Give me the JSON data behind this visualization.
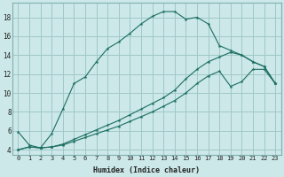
{
  "xlabel": "Humidex (Indice chaleur)",
  "bg_color": "#cce8e8",
  "grid_color": "#a0c8c8",
  "line_color": "#1a6e60",
  "xlim": [
    -0.5,
    23.5
  ],
  "ylim": [
    3.5,
    19.5
  ],
  "xticks": [
    0,
    1,
    2,
    3,
    4,
    5,
    6,
    7,
    8,
    9,
    10,
    11,
    12,
    13,
    14,
    15,
    16,
    17,
    18,
    19,
    20,
    21,
    22,
    23
  ],
  "yticks": [
    4,
    6,
    8,
    10,
    12,
    14,
    16,
    18
  ],
  "line1_x": [
    0,
    1,
    2,
    3,
    4,
    5,
    6,
    7,
    8,
    9,
    10,
    11,
    12,
    13,
    14,
    15,
    16,
    17,
    18,
    19,
    20,
    21,
    22,
    23
  ],
  "line1_y": [
    5.9,
    4.5,
    4.2,
    5.7,
    8.3,
    11.0,
    11.7,
    13.3,
    14.7,
    15.4,
    16.3,
    17.3,
    18.1,
    18.6,
    18.6,
    17.8,
    18.0,
    17.3,
    15.0,
    14.5,
    14.0,
    13.3,
    12.8,
    11.0
  ],
  "line2_x": [
    0,
    1,
    2,
    3,
    4,
    5,
    6,
    7,
    8,
    9,
    10,
    11,
    12,
    13,
    14,
    15,
    16,
    17,
    18,
    19,
    20,
    21,
    22,
    23
  ],
  "line2_y": [
    4.0,
    4.3,
    4.2,
    4.3,
    4.6,
    5.1,
    5.6,
    6.1,
    6.6,
    7.1,
    7.7,
    8.3,
    8.9,
    9.5,
    10.3,
    11.5,
    12.5,
    13.3,
    13.8,
    14.3,
    14.0,
    13.3,
    12.8,
    11.0
  ],
  "line3_x": [
    0,
    1,
    2,
    3,
    4,
    5,
    6,
    7,
    8,
    9,
    10,
    11,
    12,
    13,
    14,
    15,
    16,
    17,
    18,
    19,
    20,
    21,
    22,
    23
  ],
  "line3_y": [
    4.0,
    4.3,
    4.2,
    4.3,
    4.5,
    4.9,
    5.3,
    5.7,
    6.1,
    6.5,
    7.0,
    7.5,
    8.0,
    8.6,
    9.2,
    10.0,
    11.0,
    11.8,
    12.3,
    10.7,
    11.2,
    12.5,
    12.5,
    11.0
  ]
}
